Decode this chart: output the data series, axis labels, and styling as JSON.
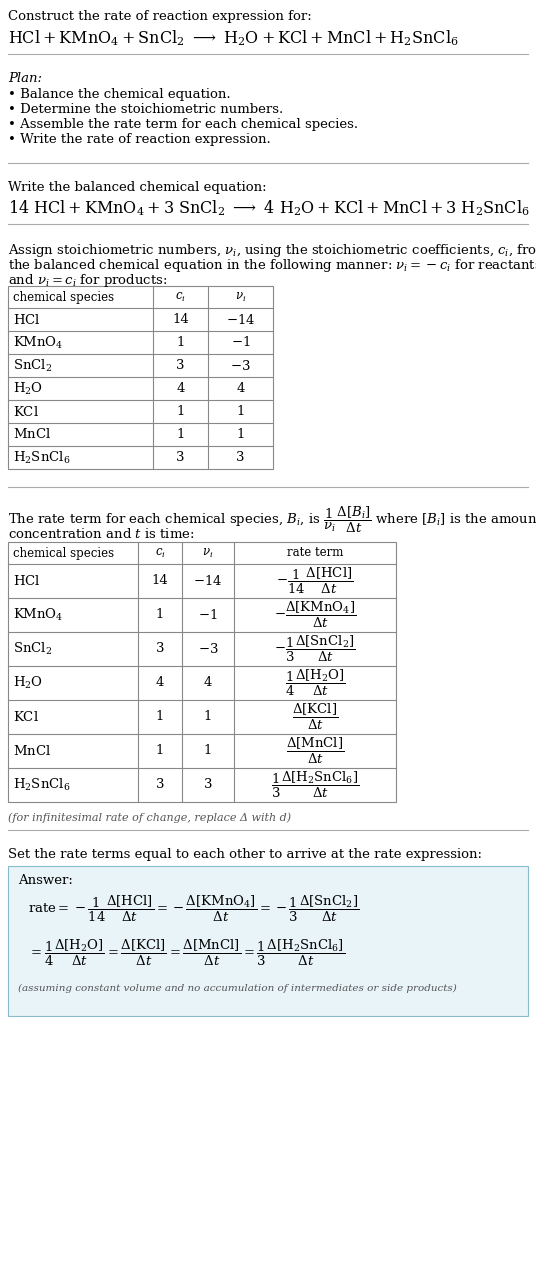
{
  "bg_color": "#ffffff",
  "answer_box_color": "#e8f4f8",
  "text_color": "#000000",
  "gray_text": "#555555",
  "line_color": "#aaaaaa",
  "font_size": 9.5,
  "title_line1": "Construct the rate of reaction expression for:",
  "plan_title": "Plan:",
  "plan_items": [
    "• Balance the chemical equation.",
    "• Determine the stoichiometric numbers.",
    "• Assemble the rate term for each chemical species.",
    "• Write the rate of reaction expression."
  ],
  "balanced_label": "Write the balanced chemical equation:",
  "infinitesimal_note": "(for infinitesimal rate of change, replace Δ with d)",
  "set_rate_label": "Set the rate terms equal to each other to arrive at the rate expression:",
  "answer_label": "Answer:",
  "answer_note": "(assuming constant volume and no accumulation of intermediates or side products)"
}
